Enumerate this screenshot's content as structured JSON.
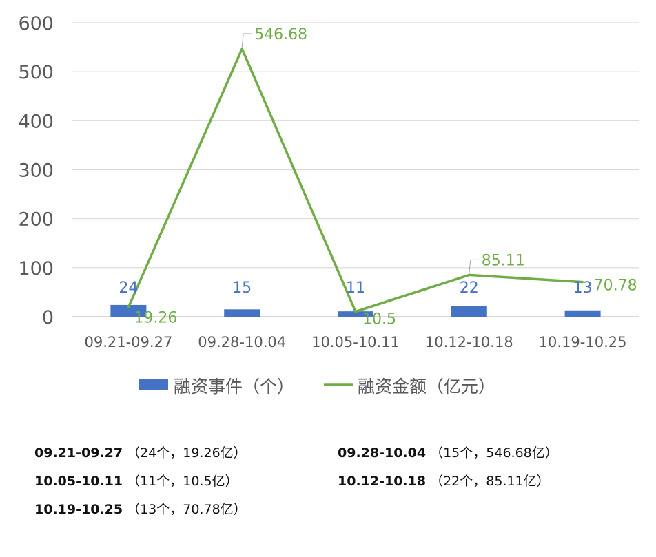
{
  "chart_data": {
    "type": "bar+line",
    "categories": [
      "09.21-09.27",
      "09.28-10.04",
      "10.05-10.11",
      "10.12-10.18",
      "10.19-10.25"
    ],
    "series": [
      {
        "name": "融资事件（个）",
        "type": "bar",
        "color": "#4472c4",
        "values": [
          24,
          15,
          11,
          22,
          13
        ],
        "labels": [
          "24",
          "15",
          "11",
          "22",
          "13"
        ]
      },
      {
        "name": "融资金额（亿元）",
        "type": "line",
        "color": "#70ad47",
        "values": [
          19.26,
          546.68,
          10.5,
          85.11,
          70.78
        ],
        "labels": [
          "19.26",
          "546.68",
          "10.5",
          "85.11",
          "70.78"
        ]
      }
    ],
    "yticks": [
      "0",
      "100",
      "200",
      "300",
      "400",
      "500",
      "600"
    ],
    "ylim": [
      0,
      600
    ],
    "grid": true,
    "legend_position": "bottom"
  },
  "summary": [
    {
      "period": "09.21-09.27",
      "detail": "（24个，19.26亿）"
    },
    {
      "period": "09.28-10.04",
      "detail": "（15个，546.68亿）"
    },
    {
      "period": "10.05-10.11",
      "detail": "（11个，10.5亿）"
    },
    {
      "period": "10.12-10.18",
      "detail": "（22个，85.11亿）"
    },
    {
      "period": "10.19-10.25",
      "detail": "（13个，70.78亿）"
    }
  ]
}
